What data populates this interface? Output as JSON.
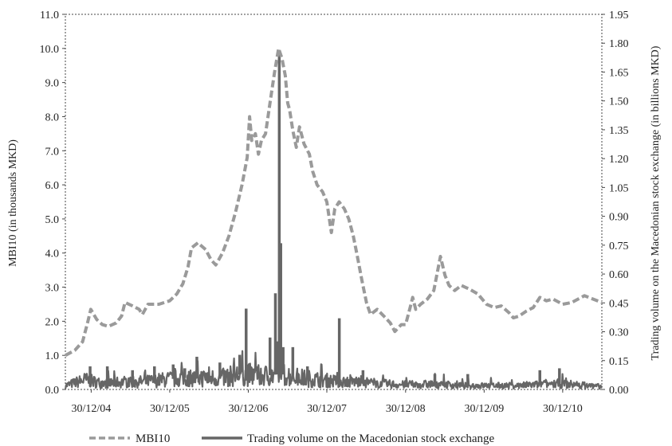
{
  "chart_data": {
    "type": "line",
    "title": "",
    "xlabel": "",
    "ylabel": "MBI10 (in thousands MKD)",
    "y2label": "Trading volume on the Macedonian stock exchange (in billions MKD)",
    "x_ticks": [
      "30/12/04",
      "30/12/05",
      "30/12/06",
      "30/12/07",
      "30/12/08",
      "30/12/09",
      "30/12/10"
    ],
    "x_domain": [
      "2004-09-01",
      "2011-06-30"
    ],
    "ylim": [
      0,
      11
    ],
    "y_ticks": [
      "0.0",
      "1.0",
      "2.0",
      "3.0",
      "4.0",
      "5.0",
      "6.0",
      "7.0",
      "8.0",
      "9.0",
      "10.0",
      "11.0"
    ],
    "y2lim": [
      0,
      1.95
    ],
    "y2_ticks": [
      "0.00",
      "0.15",
      "0.30",
      "0.45",
      "0.60",
      "0.75",
      "0.90",
      "1.05",
      "1.20",
      "1.35",
      "1.50",
      "1.65",
      "1.80",
      "1.95"
    ],
    "grid": false,
    "legend_position": "bottom",
    "series": [
      {
        "name": "MBI10",
        "axis": "left",
        "color": "#9a9a9a",
        "style": "dashed",
        "points": [
          [
            "2004-09-01",
            1.0
          ],
          [
            "2004-10-15",
            1.15
          ],
          [
            "2004-11-20",
            1.4
          ],
          [
            "2004-12-15",
            2.0
          ],
          [
            "2004-12-28",
            2.35
          ],
          [
            "2005-01-25",
            2.05
          ],
          [
            "2005-02-20",
            1.9
          ],
          [
            "2005-03-20",
            1.85
          ],
          [
            "2005-04-25",
            1.95
          ],
          [
            "2005-05-20",
            2.15
          ],
          [
            "2005-06-05",
            2.55
          ],
          [
            "2005-07-10",
            2.45
          ],
          [
            "2005-08-10",
            2.35
          ],
          [
            "2005-08-25",
            2.2
          ],
          [
            "2005-09-20",
            2.5
          ],
          [
            "2005-11-10",
            2.5
          ],
          [
            "2005-12-30",
            2.6
          ],
          [
            "2006-02-01",
            2.8
          ],
          [
            "2006-03-01",
            3.1
          ],
          [
            "2006-03-25",
            3.6
          ],
          [
            "2006-04-10",
            4.15
          ],
          [
            "2006-05-10",
            4.3
          ],
          [
            "2006-06-15",
            4.1
          ],
          [
            "2006-07-10",
            3.8
          ],
          [
            "2006-08-01",
            3.65
          ],
          [
            "2006-09-01",
            4.0
          ],
          [
            "2006-10-01",
            4.5
          ],
          [
            "2006-11-01",
            5.2
          ],
          [
            "2006-12-01",
            6.0
          ],
          [
            "2006-12-25",
            6.8
          ],
          [
            "2007-01-05",
            8.0
          ],
          [
            "2007-01-15",
            7.3
          ],
          [
            "2007-02-01",
            7.5
          ],
          [
            "2007-02-15",
            6.9
          ],
          [
            "2007-03-01",
            7.3
          ],
          [
            "2007-03-20",
            7.5
          ],
          [
            "2007-04-10",
            8.4
          ],
          [
            "2007-05-01",
            9.3
          ],
          [
            "2007-05-20",
            10.0
          ],
          [
            "2007-06-05",
            9.7
          ],
          [
            "2007-06-20",
            9.2
          ],
          [
            "2007-07-01",
            8.4
          ],
          [
            "2007-07-10",
            8.2
          ],
          [
            "2007-07-25",
            7.6
          ],
          [
            "2007-08-10",
            7.1
          ],
          [
            "2007-08-25",
            7.7
          ],
          [
            "2007-09-15",
            7.2
          ],
          [
            "2007-10-10",
            6.9
          ],
          [
            "2007-10-25",
            6.4
          ],
          [
            "2007-11-15",
            6.0
          ],
          [
            "2007-12-10",
            5.8
          ],
          [
            "2007-12-30",
            5.5
          ],
          [
            "2008-01-20",
            4.6
          ],
          [
            "2008-02-05",
            5.3
          ],
          [
            "2008-02-25",
            5.5
          ],
          [
            "2008-03-20",
            5.3
          ],
          [
            "2008-04-10",
            5.0
          ],
          [
            "2008-05-01",
            4.5
          ],
          [
            "2008-05-20",
            3.9
          ],
          [
            "2008-06-10",
            3.2
          ],
          [
            "2008-07-01",
            2.55
          ],
          [
            "2008-07-20",
            2.2
          ],
          [
            "2008-08-20",
            2.35
          ],
          [
            "2008-09-20",
            2.15
          ],
          [
            "2008-10-20",
            1.95
          ],
          [
            "2008-11-10",
            1.7
          ],
          [
            "2008-12-10",
            1.9
          ],
          [
            "2008-12-30",
            1.9
          ],
          [
            "2009-01-20",
            2.4
          ],
          [
            "2009-02-01",
            2.7
          ],
          [
            "2009-02-15",
            2.35
          ],
          [
            "2009-03-10",
            2.5
          ],
          [
            "2009-04-10",
            2.65
          ],
          [
            "2009-05-10",
            2.9
          ],
          [
            "2009-06-10",
            3.9
          ],
          [
            "2009-07-01",
            3.35
          ],
          [
            "2009-07-20",
            3.05
          ],
          [
            "2009-08-15",
            2.9
          ],
          [
            "2009-09-15",
            3.05
          ],
          [
            "2009-10-20",
            2.95
          ],
          [
            "2009-12-01",
            2.8
          ],
          [
            "2010-01-10",
            2.5
          ],
          [
            "2010-02-15",
            2.4
          ],
          [
            "2010-03-20",
            2.45
          ],
          [
            "2010-04-25",
            2.25
          ],
          [
            "2010-05-15",
            2.1
          ],
          [
            "2010-06-10",
            2.15
          ],
          [
            "2010-07-15",
            2.3
          ],
          [
            "2010-08-15",
            2.4
          ],
          [
            "2010-09-15",
            2.7
          ],
          [
            "2010-10-15",
            2.6
          ],
          [
            "2010-11-15",
            2.65
          ],
          [
            "2010-12-30",
            2.5
          ],
          [
            "2011-02-10",
            2.55
          ],
          [
            "2011-04-10",
            2.75
          ],
          [
            "2011-06-30",
            2.55
          ]
        ]
      },
      {
        "name": "Trading volume on the Macedonian stock exchange",
        "axis": "right",
        "color": "#666666",
        "style": "solid",
        "baseline": [
          [
            "2004-09-01",
            0.02
          ],
          [
            "2004-12-01",
            0.05
          ],
          [
            "2005-03-01",
            0.03
          ],
          [
            "2005-06-01",
            0.04
          ],
          [
            "2005-09-01",
            0.04
          ],
          [
            "2005-12-01",
            0.05
          ],
          [
            "2006-03-01",
            0.06
          ],
          [
            "2006-06-01",
            0.06
          ],
          [
            "2006-09-01",
            0.06
          ],
          [
            "2006-12-01",
            0.08
          ],
          [
            "2007-03-01",
            0.07
          ],
          [
            "2007-06-01",
            0.08
          ],
          [
            "2007-09-01",
            0.06
          ],
          [
            "2007-12-01",
            0.05
          ],
          [
            "2008-03-01",
            0.04
          ],
          [
            "2008-06-01",
            0.04
          ],
          [
            "2008-09-01",
            0.03
          ],
          [
            "2008-12-01",
            0.025
          ],
          [
            "2009-03-01",
            0.025
          ],
          [
            "2009-06-01",
            0.03
          ],
          [
            "2009-09-01",
            0.02
          ],
          [
            "2009-12-01",
            0.02
          ],
          [
            "2010-03-01",
            0.02
          ],
          [
            "2010-06-01",
            0.02
          ],
          [
            "2010-09-01",
            0.025
          ],
          [
            "2010-12-01",
            0.03
          ],
          [
            "2011-03-01",
            0.025
          ],
          [
            "2011-06-30",
            0.015
          ]
        ],
        "spikes": [
          [
            "2004-12-25",
            0.12
          ],
          [
            "2005-03-15",
            0.12
          ],
          [
            "2005-07-10",
            0.1
          ],
          [
            "2005-10-20",
            0.12
          ],
          [
            "2006-01-15",
            0.13
          ],
          [
            "2006-03-10",
            0.11
          ],
          [
            "2006-05-05",
            0.17
          ],
          [
            "2006-08-20",
            0.14
          ],
          [
            "2006-11-20",
            0.18
          ],
          [
            "2006-12-20",
            0.42
          ],
          [
            "2007-04-10",
            0.27
          ],
          [
            "2007-05-05",
            0.5
          ],
          [
            "2007-05-15",
            0.25
          ],
          [
            "2007-05-23",
            1.76
          ],
          [
            "2007-05-30",
            0.76
          ],
          [
            "2007-06-10",
            0.22
          ],
          [
            "2007-07-25",
            0.22
          ],
          [
            "2007-10-01",
            0.12
          ],
          [
            "2008-02-26",
            0.37
          ],
          [
            "2008-06-15",
            0.1
          ],
          [
            "2009-05-15",
            0.08
          ],
          [
            "2009-10-15",
            0.08
          ],
          [
            "2010-09-15",
            0.1
          ],
          [
            "2010-12-15",
            0.11
          ]
        ]
      }
    ]
  }
}
